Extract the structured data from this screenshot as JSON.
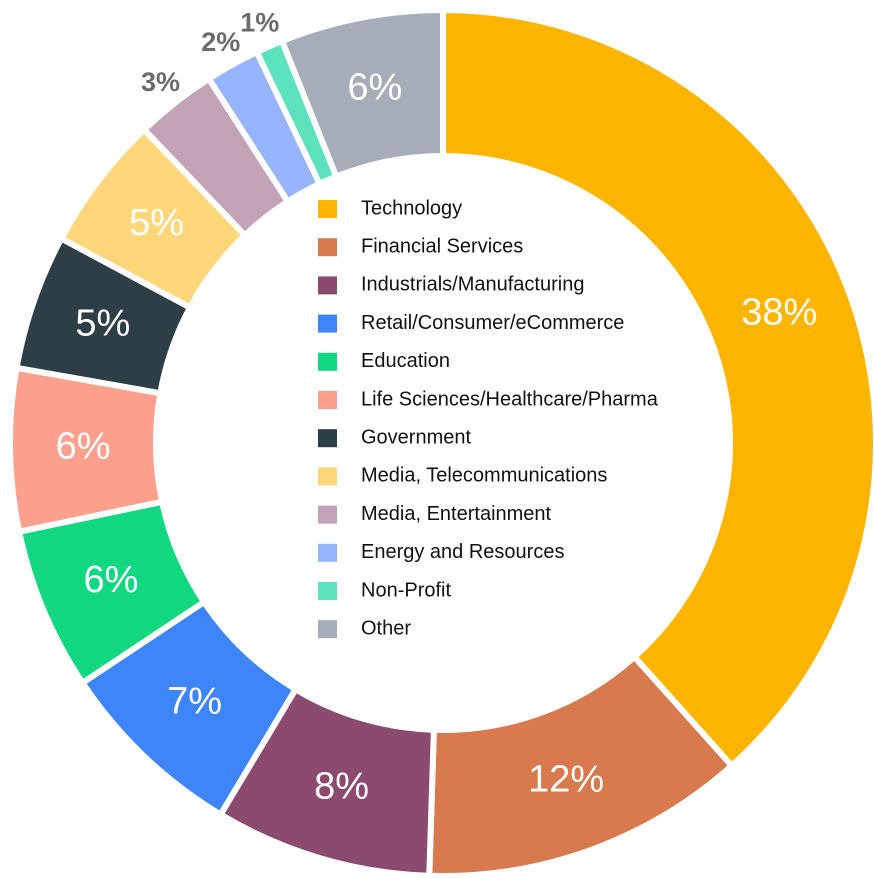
{
  "chart_data": {
    "type": "donut",
    "categories": [
      "Technology",
      "Financial Services",
      "Industrials/Manufacturing",
      "Retail/Consumer/eCommerce",
      "Education",
      "Life Sciences/Healthcare/Pharma",
      "Government",
      "Media, Telecommunications",
      "Media, Entertainment",
      "Energy and Resources",
      "Non-Profit",
      "Other"
    ],
    "values": [
      38,
      12,
      8,
      7,
      6,
      6,
      5,
      5,
      3,
      2,
      1,
      6
    ],
    "value_labels": [
      "38%",
      "12%",
      "8%",
      "7%",
      "6%",
      "6%",
      "5%",
      "5%",
      "3%",
      "2%",
      "1%",
      "6%"
    ],
    "colors": [
      "#fdb500",
      "#d9794e",
      "#8b4a6e",
      "#3d85f8",
      "#12d882",
      "#fda08e",
      "#2d3e47",
      "#fdd77a",
      "#c4a3b6",
      "#97b4ff",
      "#5ce3bd",
      "#a6adb8"
    ],
    "legend": "center"
  }
}
